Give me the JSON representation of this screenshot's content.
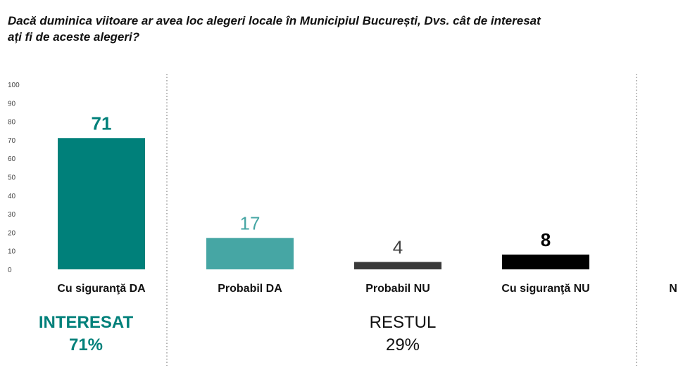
{
  "title": "Dacă duminica viitoare ar avea loc alegeri locale în Municipiul București, Dvs. cât de interesat ați fi de aceste alegeri?",
  "chart_data": {
    "type": "bar",
    "title": "Dacă duminica viitoare ar avea loc alegeri locale în Municipiul București, Dvs. cât de interesat ați fi de aceste alegeri?",
    "categories": [
      "Cu siguranţă DA",
      "Probabil DA",
      "Probabil NU",
      "Cu siguranţă NU",
      "N"
    ],
    "values": [
      71,
      17,
      4,
      8,
      null
    ],
    "value_labels": [
      "71",
      "17",
      "4",
      "8",
      ""
    ],
    "bar_colors": [
      "#00807a",
      "#46a6a4",
      "#3a3a3a",
      "#000000",
      "#ffffff"
    ],
    "label_colors": [
      "#00807a",
      "#46a6a4",
      "#404040",
      "#000000",
      "#000000"
    ],
    "label_bold": [
      true,
      false,
      false,
      true,
      false
    ],
    "yticks": [
      0,
      10,
      20,
      30,
      40,
      50,
      60,
      70,
      80,
      90,
      100
    ],
    "ylim": [
      0,
      100
    ],
    "xlabel": "",
    "ylabel": "",
    "groups": [
      {
        "label": "INTERESAT",
        "value": "71%",
        "color": "#00807a",
        "bold": true
      },
      {
        "label": "RESTUL",
        "value": "29%",
        "color": "#111111",
        "bold": false
      }
    ]
  }
}
